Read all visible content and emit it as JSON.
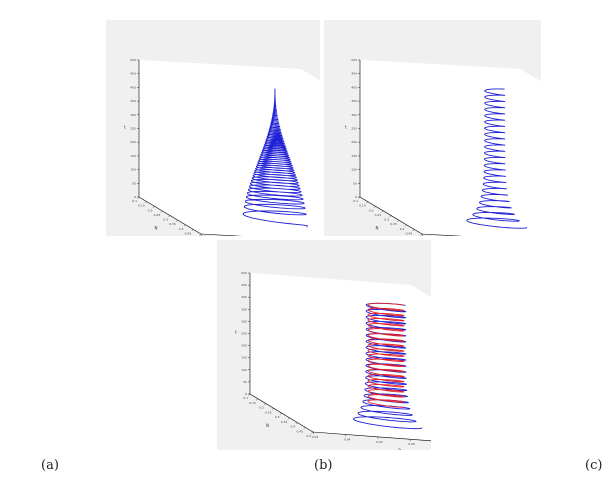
{
  "captions": [
    "(a)",
    "(b)",
    "(c)"
  ],
  "chart_data": [
    {
      "type": "line",
      "panel": "a",
      "projection": "3d",
      "axes": {
        "x_label": "P",
        "x_ticks": [
          "0.03",
          "0.04",
          "0.05",
          "0.06",
          "0.07",
          "0.08"
        ],
        "xlim": [
          0.03,
          0.08
        ],
        "y_label": "N",
        "y_ticks": [
          "0.1",
          "0.15",
          "0.2",
          "0.25",
          "0.3",
          "0.35",
          "0.4",
          "0.45",
          "0.5"
        ],
        "ylim": [
          0.1,
          0.5
        ],
        "z_label": "t",
        "z_ticks": [
          "0",
          "50",
          "100",
          "150",
          "200",
          "250",
          "300",
          "350",
          "400",
          "450",
          "500"
        ],
        "zlim": [
          0,
          500
        ]
      },
      "series": [
        {
          "color": "#1f1fd6",
          "behavior": "damped",
          "x_center": 0.06,
          "y_center": 0.35,
          "r_start": 0.9,
          "r_end": 0.0,
          "z_start": 0,
          "z_end": 500,
          "turns": 70
        }
      ]
    },
    {
      "type": "line",
      "panel": "b",
      "projection": "3d",
      "axes": {
        "x_label": "P",
        "x_ticks": [
          "0.03",
          "0.04",
          "0.05",
          "0.06",
          "0.07",
          "0.08"
        ],
        "xlim": [
          0.03,
          0.08
        ],
        "y_label": "N",
        "y_ticks": [
          "0.1",
          "0.15",
          "0.2",
          "0.25",
          "0.3",
          "0.35",
          "0.4",
          "0.45",
          "0.5"
        ],
        "ylim": [
          0.1,
          0.5
        ],
        "z_label": "t",
        "z_ticks": [
          "0",
          "50",
          "100",
          "150",
          "200",
          "250",
          "300",
          "350",
          "400",
          "450",
          "500"
        ],
        "zlim": [
          0,
          500
        ]
      },
      "series": [
        {
          "color": "#1f1fd6",
          "behavior": "sustained",
          "x_center": 0.06,
          "y_center": 0.35,
          "r_start": 0.9,
          "r_end": 0.28,
          "z_start": 0,
          "z_end": 500,
          "turns": 22
        }
      ]
    },
    {
      "type": "line",
      "panel": "c",
      "projection": "3d",
      "axes": {
        "x_label": "P",
        "x_ticks": [
          "0.03",
          "0.04",
          "0.05",
          "0.06",
          "0.07",
          "0.08"
        ],
        "xlim": [
          0.03,
          0.08
        ],
        "y_label": "N",
        "y_ticks": [
          "0.1",
          "0.15",
          "0.2",
          "0.25",
          "0.3",
          "0.35",
          "0.4",
          "0.45",
          "0.5"
        ],
        "ylim": [
          0.1,
          0.5
        ],
        "z_label": "t",
        "z_ticks": [
          "0",
          "50",
          "100",
          "150",
          "200",
          "250",
          "300",
          "350",
          "400",
          "450",
          "500"
        ],
        "zlim": [
          0,
          500
        ]
      },
      "series": [
        {
          "color": "#1f1fd6",
          "behavior": "sustained",
          "x_center": 0.06,
          "y_center": 0.35,
          "r_start": 1.0,
          "r_end": 0.55,
          "z_start": 0,
          "z_end": 500,
          "turns": 20
        },
        {
          "color": "#e0202a",
          "behavior": "sustained",
          "x_center": 0.06,
          "y_center": 0.35,
          "r_start": 0.5,
          "r_end": 0.5,
          "z_start": 80,
          "z_end": 500,
          "turns": 20
        }
      ]
    }
  ]
}
